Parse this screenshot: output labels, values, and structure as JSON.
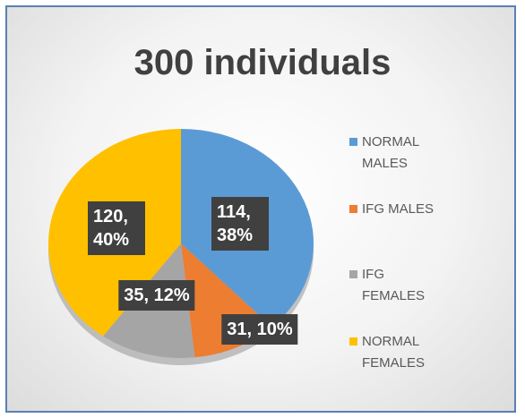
{
  "chart_data": {
    "type": "pie",
    "title": "300 individuals",
    "categories": [
      "NORMAL MALES",
      "IFG MALES",
      "IFG FEMALES",
      "NORMAL FEMALES"
    ],
    "values": [
      114,
      31,
      35,
      120
    ],
    "value_labels": [
      "114, 38%",
      "31, 10%",
      "35, 12%",
      "120, 40%"
    ],
    "colors": [
      "#5b9bd5",
      "#ed7d31",
      "#a5a5a5",
      "#ffc000"
    ],
    "legend": "right"
  }
}
